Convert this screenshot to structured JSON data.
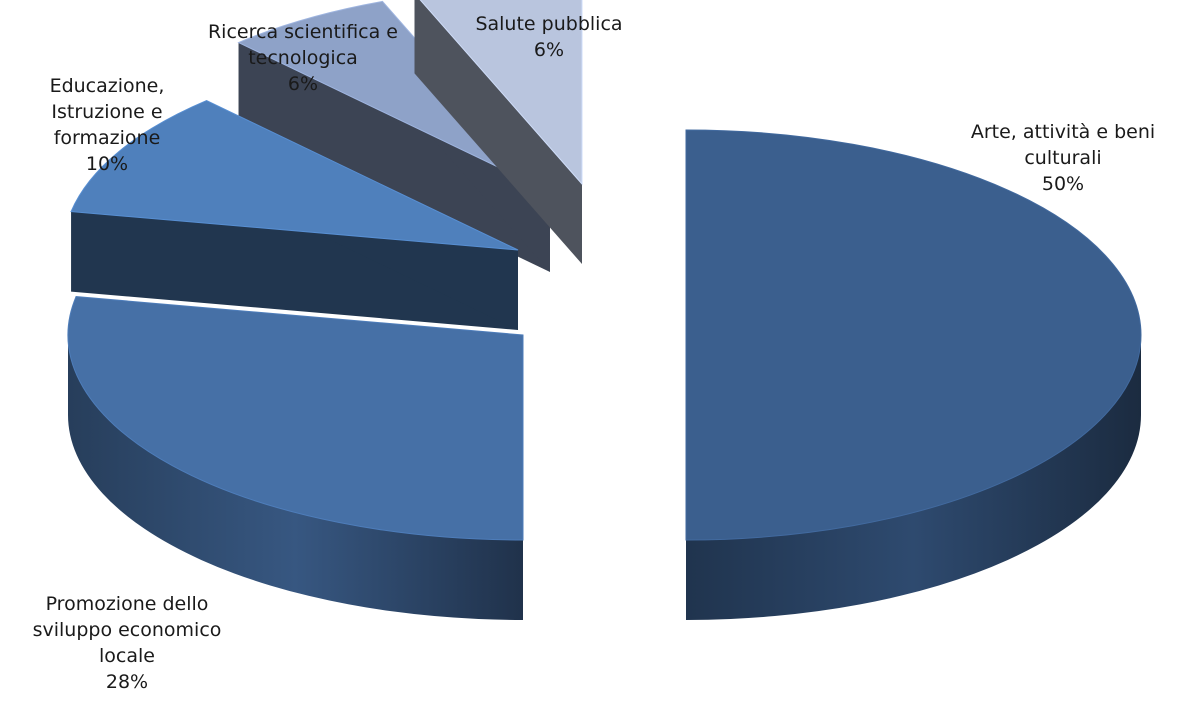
{
  "chart_data": {
    "type": "pie",
    "style": "3d-exploded",
    "title": "",
    "legend": "none",
    "data_labels": "category-and-percent",
    "slices": [
      {
        "name": "Arte, attività e beni culturali",
        "label_lines": [
          "Arte, attività e beni",
          "culturali"
        ],
        "value": 50,
        "value_label": "50%",
        "color": "#3b5f8e"
      },
      {
        "name": "Promozione dello sviluppo economico locale",
        "label_lines": [
          "Promozione dello",
          "sviluppo economico",
          "locale"
        ],
        "value": 28,
        "value_label": "28%",
        "color": "#4670a6"
      },
      {
        "name": "Educazione, Istruzione e formazione",
        "label_lines": [
          "Educazione,",
          "Istruzione e",
          "formazione"
        ],
        "value": 10,
        "value_label": "10%",
        "color": "#4f80bc"
      },
      {
        "name": "Ricerca scientifica e tecnologica",
        "label_lines": [
          "Ricerca scientifica e",
          "tecnologica"
        ],
        "value": 6,
        "value_label": "6%",
        "color": "#8ea2c8"
      },
      {
        "name": "Salute pubblica",
        "label_lines": [
          "Salute pubblica"
        ],
        "value": 6,
        "value_label": "6%",
        "color": "#b9c5de"
      }
    ]
  }
}
